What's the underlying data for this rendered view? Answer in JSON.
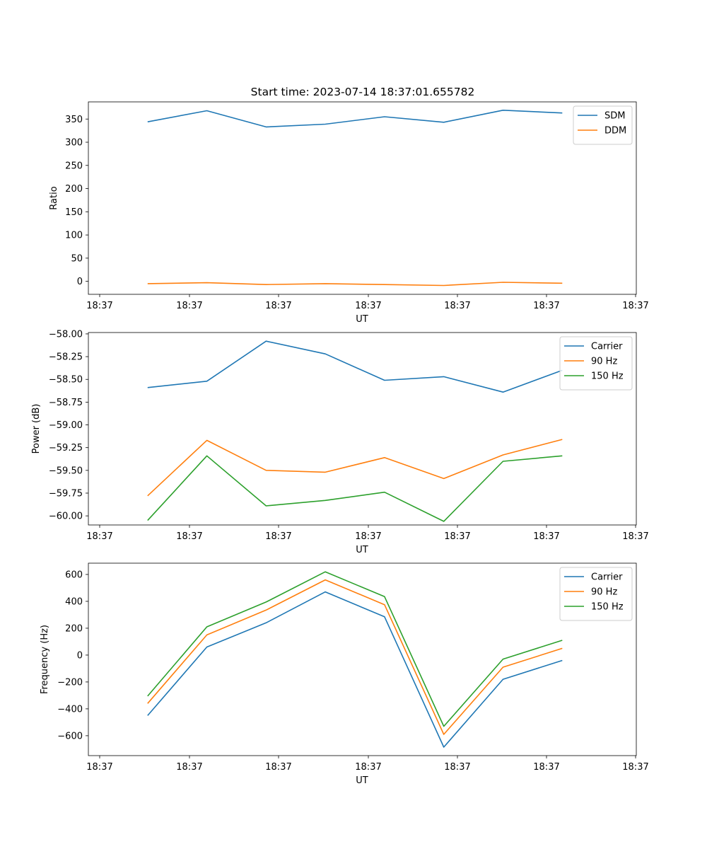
{
  "figure": {
    "title": "Start time: 2023-07-14 18:37:01.655782"
  },
  "colors": {
    "blue": "#1f77b4",
    "orange": "#ff7f0e",
    "green": "#2ca02c"
  },
  "chart_data": [
    {
      "type": "line",
      "title": "Start time: 2023-07-14 18:37:01.655782",
      "xlabel": "UT",
      "ylabel": "Ratio",
      "xticks": [
        "18:37",
        "18:37",
        "18:37",
        "18:37",
        "18:37",
        "18:37",
        "18:37"
      ],
      "xlim": [
        0,
        9.25
      ],
      "ylim": [
        -28,
        387
      ],
      "yticks": [
        0,
        50,
        100,
        150,
        200,
        250,
        300,
        350
      ],
      "ytick_labels": [
        "0",
        "50",
        "100",
        "150",
        "200",
        "250",
        "300",
        "350"
      ],
      "x": [
        1,
        2,
        3,
        4,
        5,
        6,
        7,
        8
      ],
      "legend": "top-right",
      "series": [
        {
          "name": "SDM",
          "color": "#1f77b4",
          "values": [
            344,
            368,
            333,
            339,
            355,
            343,
            369,
            363
          ]
        },
        {
          "name": "DDM",
          "color": "#ff7f0e",
          "values": [
            -5,
            -3,
            -7,
            -5,
            -7,
            -9,
            -2,
            -4
          ]
        }
      ]
    },
    {
      "type": "line",
      "title": "",
      "xlabel": "UT",
      "ylabel": "Power (dB)",
      "xticks": [
        "18:37",
        "18:37",
        "18:37",
        "18:37",
        "18:37",
        "18:37",
        "18:37"
      ],
      "xlim": [
        0,
        9.25
      ],
      "ylim": [
        -60.1,
        -57.985
      ],
      "yticks": [
        -60.0,
        -59.75,
        -59.5,
        -59.25,
        -59.0,
        -58.75,
        -58.5,
        -58.25,
        -58.0
      ],
      "ytick_labels": [
        "−60.00",
        "−59.75",
        "−59.50",
        "−59.25",
        "−59.00",
        "−58.75",
        "−58.50",
        "−58.25",
        "−58.00"
      ],
      "x": [
        1,
        2,
        3,
        4,
        5,
        6,
        7,
        8
      ],
      "legend": "top-right",
      "series": [
        {
          "name": "Carrier",
          "color": "#1f77b4",
          "values": [
            -58.59,
            -58.52,
            -58.08,
            -58.22,
            -58.51,
            -58.47,
            -58.64,
            -58.4
          ]
        },
        {
          "name": "90 Hz",
          "color": "#ff7f0e",
          "values": [
            -59.78,
            -59.17,
            -59.5,
            -59.52,
            -59.36,
            -59.59,
            -59.33,
            -59.16
          ]
        },
        {
          "name": "150 Hz",
          "color": "#2ca02c",
          "values": [
            -60.05,
            -59.34,
            -59.89,
            -59.83,
            -59.74,
            -60.06,
            -59.4,
            -59.34
          ]
        }
      ]
    },
    {
      "type": "line",
      "title": "",
      "xlabel": "UT",
      "ylabel": "Frequency (Hz)",
      "xticks": [
        "18:37",
        "18:37",
        "18:37",
        "18:37",
        "18:37",
        "18:37",
        "18:37"
      ],
      "xlim": [
        0,
        9.25
      ],
      "ylim": [
        -748,
        684
      ],
      "yticks": [
        -600,
        -400,
        -200,
        0,
        200,
        400,
        600
      ],
      "ytick_labels": [
        "−600",
        "−400",
        "−200",
        "0",
        "200",
        "400",
        "600"
      ],
      "x": [
        1,
        2,
        3,
        4,
        5,
        6,
        7,
        8
      ],
      "legend": "top-right",
      "series": [
        {
          "name": "Carrier",
          "color": "#1f77b4",
          "values": [
            -450,
            60,
            240,
            470,
            285,
            -685,
            -180,
            -40
          ]
        },
        {
          "name": "90 Hz",
          "color": "#ff7f0e",
          "values": [
            -360,
            150,
            335,
            560,
            375,
            -590,
            -90,
            50
          ]
        },
        {
          "name": "150 Hz",
          "color": "#2ca02c",
          "values": [
            -305,
            210,
            395,
            620,
            435,
            -530,
            -30,
            110
          ]
        }
      ]
    }
  ]
}
